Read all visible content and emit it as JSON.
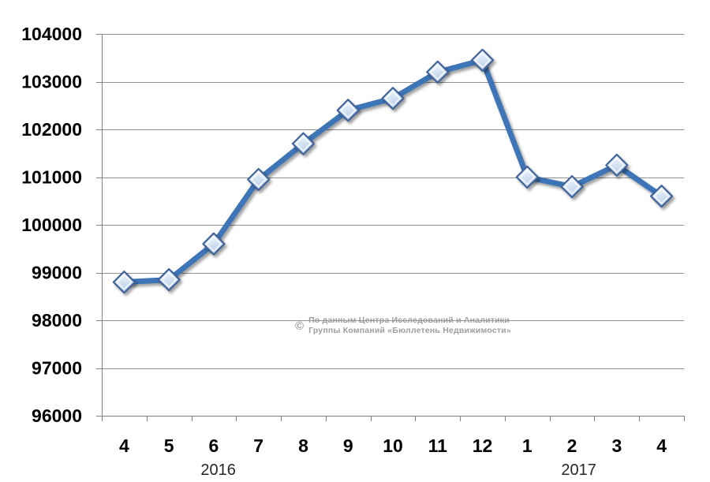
{
  "chart_data": {
    "type": "line",
    "title": "",
    "xlabel": "",
    "ylabel": "",
    "x_categories": [
      "4",
      "5",
      "6",
      "7",
      "8",
      "9",
      "10",
      "11",
      "12",
      "1",
      "2",
      "3",
      "4"
    ],
    "year_groups": [
      {
        "label": "2016",
        "label_index": 2.6
      },
      {
        "label": "2017",
        "label_index": 10.65
      }
    ],
    "values": [
      98800,
      98850,
      99600,
      100950,
      101700,
      102400,
      102650,
      103200,
      103450,
      101000,
      100800,
      101250,
      100600
    ],
    "ylim": [
      96000,
      104000
    ],
    "ytick_step": 1000,
    "grid": true,
    "legend": "none",
    "marker": "diamond",
    "colors": {
      "line": "#3E74B6",
      "marker_border": "#40639A",
      "marker_fill_top": "#f7fafd",
      "marker_fill_mid": "#dde9f5",
      "marker_fill_bottom": "#b9cfe9",
      "grid": "#909090",
      "axis": "#808080",
      "tick_label": "#000000",
      "year_label": "#262626"
    }
  },
  "watermark": {
    "symbol": "©",
    "line1": "По данным Центра Исследований и Аналитики",
    "line2": "Группы Компаний «Бюллетень Недвижимости»",
    "color": "#9e9e9e"
  }
}
